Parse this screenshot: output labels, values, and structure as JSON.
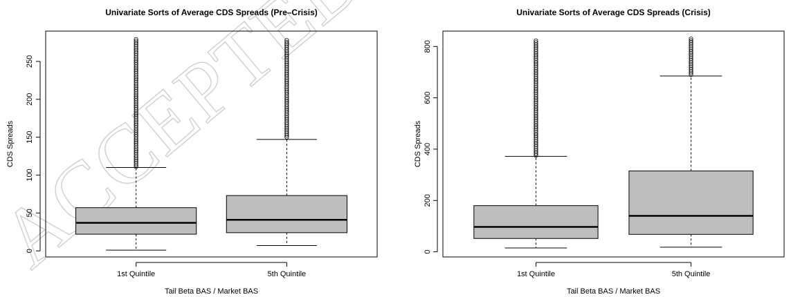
{
  "watermark": "ACCEPTED",
  "chart_data": [
    {
      "type": "box",
      "title": "Univariate Sorts of Average CDS Spreads (Pre–Crisis)",
      "xlabel": "Tail Beta BAS / Market BAS",
      "ylabel": "CDS Spreads",
      "categories": [
        "1st Quintile",
        "5th Quintile"
      ],
      "yticks": [
        0,
        50,
        100,
        150,
        200,
        250
      ],
      "ylim": [
        -8,
        290
      ],
      "grid": false,
      "box_fill": "#bebebe",
      "boxes": [
        {
          "whisker_low": 1,
          "q1": 22,
          "median": 37,
          "q3": 57,
          "whisker_high": 110,
          "outliers_from": 111,
          "outliers_to": 280
        },
        {
          "whisker_low": 7,
          "q1": 24,
          "median": 41,
          "q3": 73,
          "whisker_high": 147,
          "outliers_from": 150,
          "outliers_to": 280
        }
      ]
    },
    {
      "type": "box",
      "title": "Univariate Sorts of Average CDS Spreads (Crisis)",
      "xlabel": "Tail Beta BAS / Market BAS",
      "ylabel": "CDS Spreads",
      "categories": [
        "1st Quintile",
        "5th Quintile"
      ],
      "yticks": [
        0,
        200,
        400,
        600,
        800
      ],
      "ylim": [
        -20,
        860
      ],
      "grid": false,
      "box_fill": "#bebebe",
      "boxes": [
        {
          "whisker_low": 15,
          "q1": 52,
          "median": 97,
          "q3": 180,
          "whisker_high": 372,
          "outliers_from": 375,
          "outliers_to": 825
        },
        {
          "whisker_low": 18,
          "q1": 68,
          "median": 140,
          "q3": 315,
          "whisker_high": 685,
          "outliers_from": 690,
          "outliers_to": 832
        }
      ]
    }
  ]
}
